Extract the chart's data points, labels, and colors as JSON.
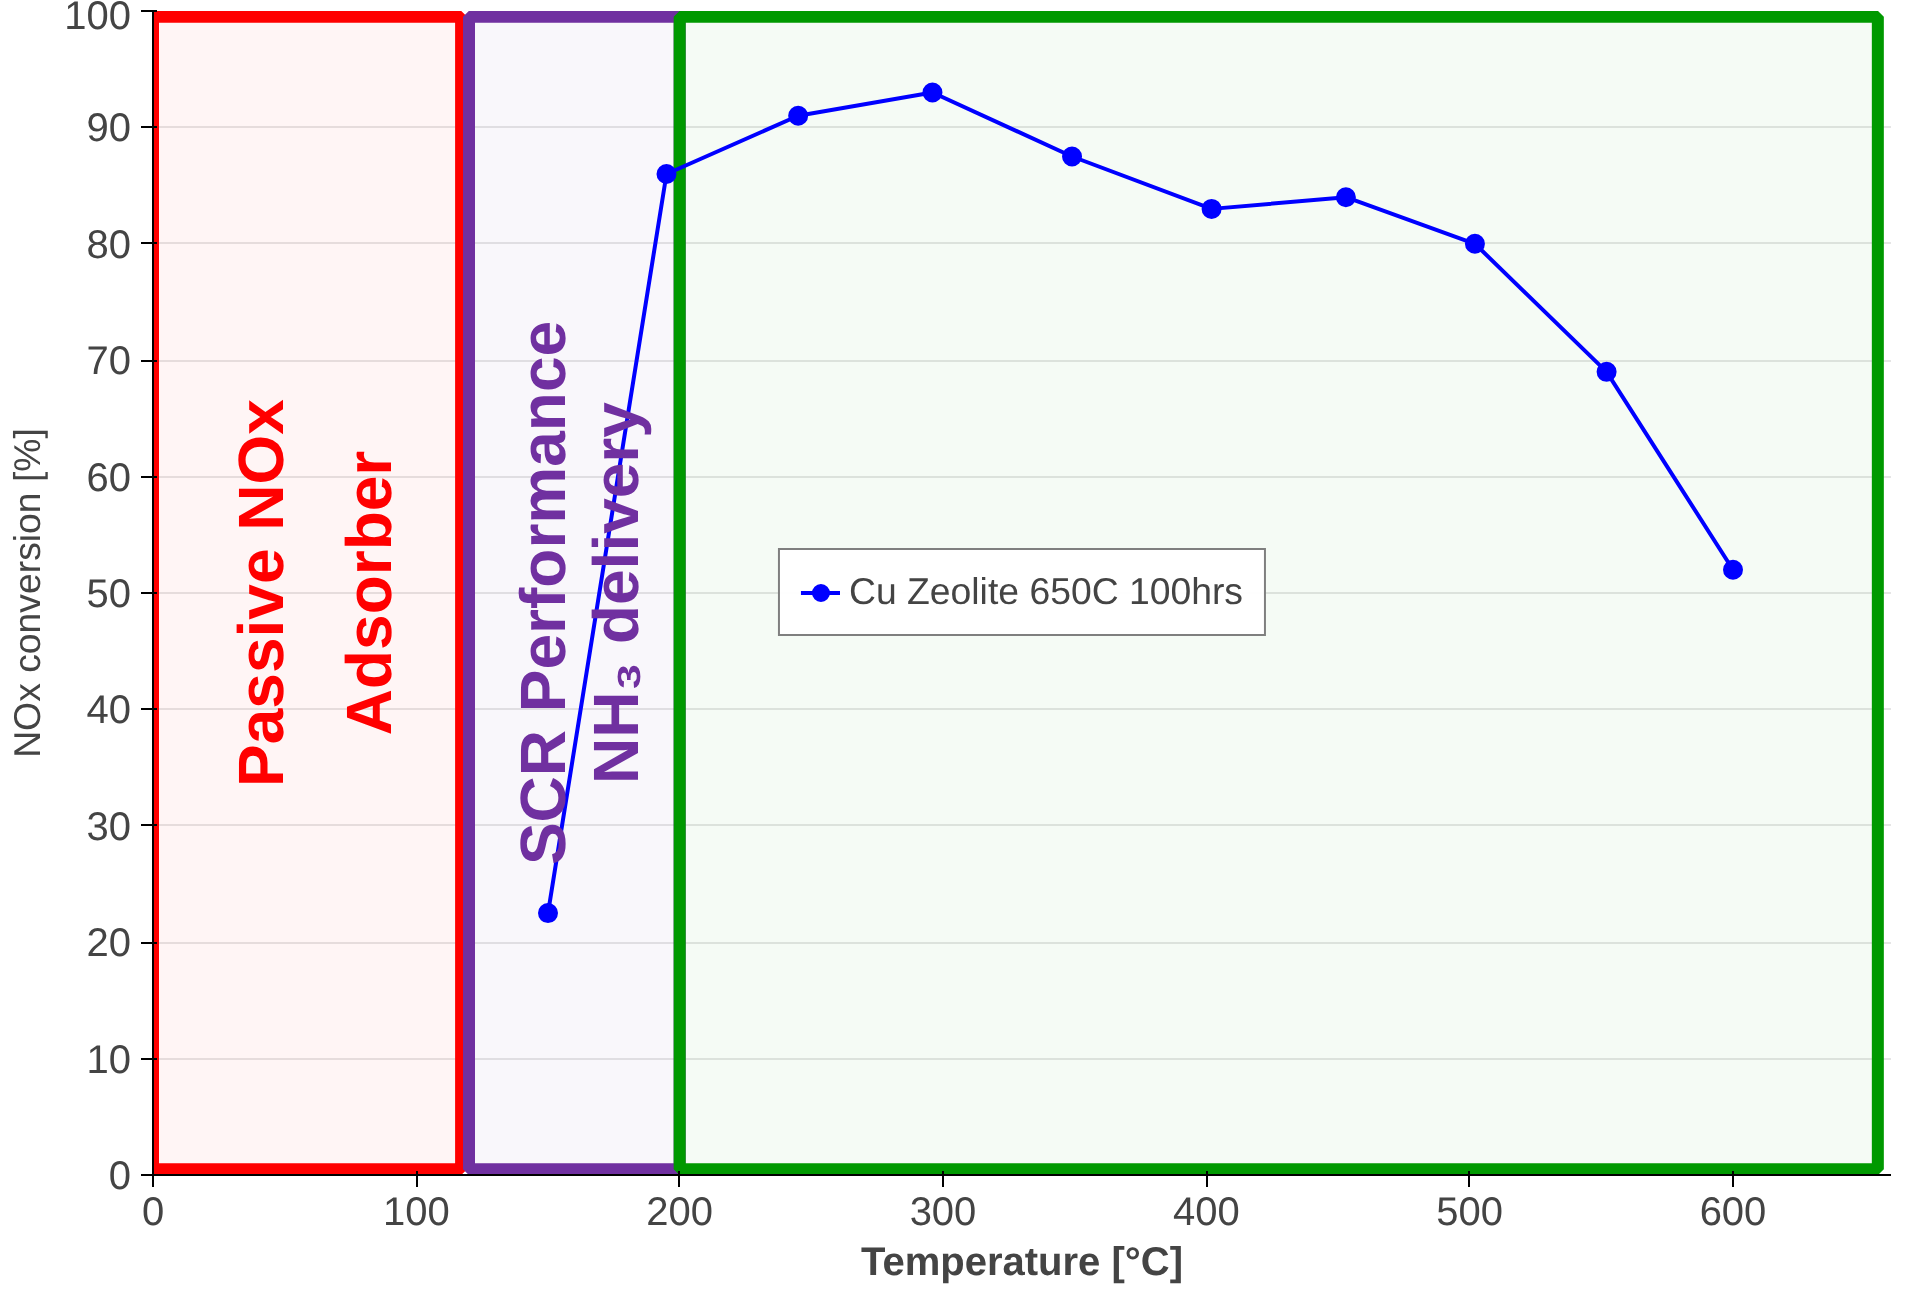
{
  "chart_data": {
    "type": "line",
    "xlabel": "Temperature [°C]",
    "ylabel": "NOx conversion [%]",
    "xlim": [
      0,
      660
    ],
    "xticks": [
      0,
      100,
      200,
      300,
      400,
      500,
      600
    ],
    "ylim": [
      0,
      100
    ],
    "yticks": [
      0,
      10,
      20,
      30,
      40,
      50,
      60,
      70,
      80,
      90,
      100
    ],
    "grid": "y",
    "legend": "center",
    "marker": "circle",
    "line_style": "solid",
    "series": [
      {
        "name": "Cu Zeolite 650C 100hrs",
        "color": "#0000ff",
        "x": [
          150,
          195,
          245,
          296,
          349,
          402,
          453,
          502,
          552,
          600
        ],
        "values": [
          22.5,
          86,
          91,
          93,
          87.5,
          83,
          84,
          80,
          69,
          52
        ]
      }
    ],
    "bands": [
      {
        "axis": "x",
        "from": 0,
        "to": 117,
        "label": "Passive NOx Adsorber",
        "color": "#ff0000"
      },
      {
        "axis": "x",
        "from": 120,
        "to": 200,
        "label": "SCR Performance NH₃ delivery",
        "color": "#7030a0"
      },
      {
        "axis": "x",
        "from": 200,
        "to": 655,
        "color": "#009900"
      }
    ]
  }
}
